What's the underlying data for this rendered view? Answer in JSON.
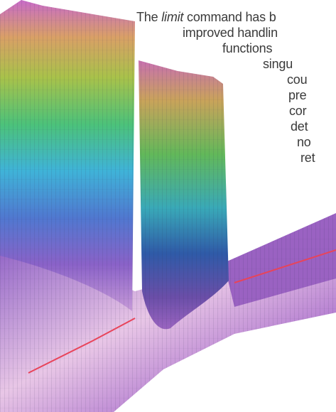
{
  "text": {
    "lines": [
      {
        "before": "The",
        "emphasis": "limit",
        "after": "command has b"
      },
      "improved handlin",
      "functions",
      "singu",
      "cou",
      "pre",
      "cor",
      "det",
      "no",
      "ret"
    ]
  }
}
